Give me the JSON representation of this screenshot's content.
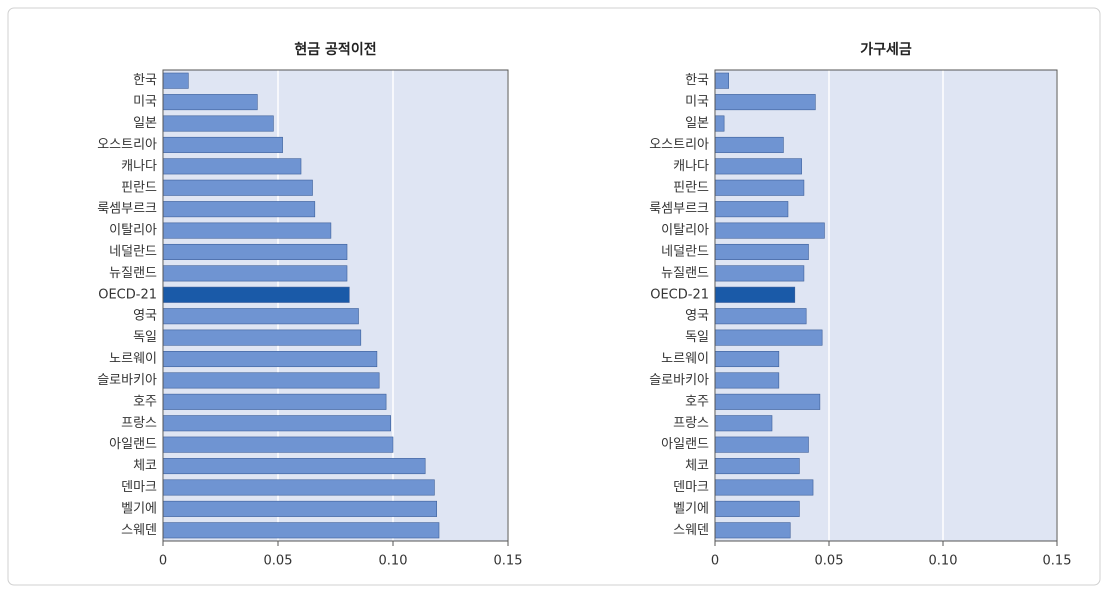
{
  "chart_data": [
    {
      "type": "hbar",
      "title": "현금 공적이전",
      "categories": [
        "한국",
        "미국",
        "일본",
        "오스트리아",
        "캐나다",
        "핀란드",
        "룩셈부르크",
        "이탈리아",
        "네덜란드",
        "뉴질랜드",
        "OECD-21",
        "영국",
        "독일",
        "노르웨이",
        "슬로바키아",
        "호주",
        "프랑스",
        "아일랜드",
        "체코",
        "덴마크",
        "벨기에",
        "스웨덴"
      ],
      "values": [
        0.011,
        0.041,
        0.048,
        0.052,
        0.06,
        0.065,
        0.066,
        0.073,
        0.08,
        0.08,
        0.081,
        0.085,
        0.086,
        0.093,
        0.094,
        0.097,
        0.099,
        0.1,
        0.114,
        0.118,
        0.119,
        0.12
      ],
      "colors": [
        "#6f94d2",
        "#6f94d2",
        "#6f94d2",
        "#6f94d2",
        "#6f94d2",
        "#6f94d2",
        "#6f94d2",
        "#6f94d2",
        "#6f94d2",
        "#6f94d2",
        "#1a5aa8",
        "#6f94d2",
        "#6f94d2",
        "#6f94d2",
        "#6f94d2",
        "#6f94d2",
        "#6f94d2",
        "#6f94d2",
        "#6f94d2",
        "#6f94d2",
        "#6f94d2",
        "#6f94d2"
      ],
      "xlim": [
        0,
        0.15
      ],
      "xticks": [
        0,
        0.05,
        {
          "value": 0.1,
          "label": "0.10"
        },
        0.15
      ],
      "grid": true
    },
    {
      "type": "hbar",
      "title": "가구세금",
      "categories": [
        "한국",
        "미국",
        "일본",
        "오스트리아",
        "캐나다",
        "핀란드",
        "룩셈부르크",
        "이탈리아",
        "네덜란드",
        "뉴질랜드",
        "OECD-21",
        "영국",
        "독일",
        "노르웨이",
        "슬로바키아",
        "호주",
        "프랑스",
        "아일랜드",
        "체코",
        "덴마크",
        "벨기에",
        "스웨덴"
      ],
      "values": [
        0.006,
        0.044,
        0.004,
        0.03,
        0.038,
        0.039,
        0.032,
        0.048,
        0.041,
        0.039,
        0.035,
        0.04,
        0.047,
        0.028,
        0.028,
        0.046,
        0.025,
        0.041,
        0.037,
        0.043,
        0.037,
        0.033
      ],
      "colors": [
        "#6f94d2",
        "#6f94d2",
        "#6f94d2",
        "#6f94d2",
        "#6f94d2",
        "#6f94d2",
        "#6f94d2",
        "#6f94d2",
        "#6f94d2",
        "#6f94d2",
        "#1a5aa8",
        "#6f94d2",
        "#6f94d2",
        "#6f94d2",
        "#6f94d2",
        "#6f94d2",
        "#6f94d2",
        "#6f94d2",
        "#6f94d2",
        "#6f94d2",
        "#6f94d2",
        "#6f94d2"
      ],
      "xlim": [
        0,
        0.15
      ],
      "xticks": [
        0,
        0.05,
        {
          "value": 0.1,
          "label": "0.10"
        },
        0.15
      ],
      "grid": true
    }
  ]
}
